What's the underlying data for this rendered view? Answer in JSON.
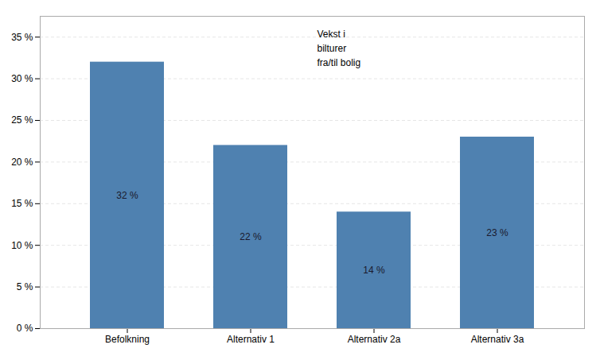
{
  "chart_data": {
    "type": "bar",
    "categories": [
      "Befolkning",
      "Alternativ 1",
      "Alternativ 2a",
      "Alternativ 3a"
    ],
    "values": [
      0.32,
      0.22,
      0.14,
      0.23
    ],
    "value_labels": [
      "32 %",
      "22 %",
      "14 %",
      "23 %"
    ],
    "data_labels": true,
    "color": "#4f81b0",
    "annotation": "Vekst i\nbilturer\nfra/til bolig",
    "ylim": [
      0,
      0.375
    ],
    "yticks": [
      {
        "value": 0.0,
        "label": "0 %"
      },
      {
        "value": 0.05,
        "label": "5 %"
      },
      {
        "value": 0.1,
        "label": "10 %"
      },
      {
        "value": 0.15,
        "label": "15 %"
      },
      {
        "value": 0.2,
        "label": "20 %"
      },
      {
        "value": 0.25,
        "label": "25 %"
      },
      {
        "value": 0.3,
        "label": "30 %"
      },
      {
        "value": 0.35,
        "label": "35 %"
      }
    ],
    "grid": true
  }
}
